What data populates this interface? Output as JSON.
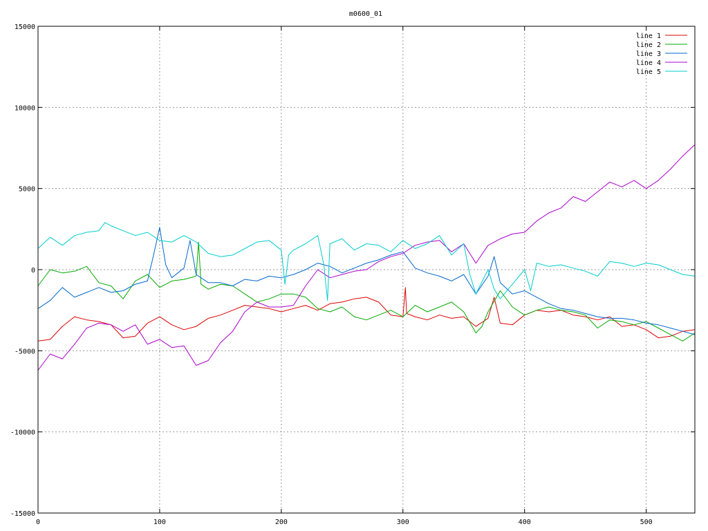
{
  "chart_data": {
    "type": "line",
    "title": "m0600_01",
    "xlabel": "",
    "ylabel": "",
    "xlim": [
      0,
      540
    ],
    "ylim": [
      -15000,
      15000
    ],
    "x_ticks": [
      0,
      100,
      200,
      300,
      400,
      500
    ],
    "y_ticks": [
      -15000,
      -10000,
      -5000,
      0,
      5000,
      10000,
      15000
    ],
    "grid": true,
    "legend_position": "top-right",
    "series": [
      {
        "name": "line 1",
        "color": "#dd0000",
        "x": [
          0,
          10,
          20,
          30,
          40,
          50,
          60,
          70,
          80,
          90,
          100,
          110,
          120,
          130,
          140,
          150,
          160,
          170,
          180,
          190,
          200,
          210,
          220,
          230,
          240,
          250,
          260,
          270,
          280,
          290,
          300,
          302,
          303,
          310,
          320,
          330,
          340,
          350,
          360,
          370,
          375,
          380,
          390,
          400,
          410,
          420,
          430,
          440,
          450,
          460,
          470,
          480,
          490,
          500,
          510,
          520,
          530,
          540
        ],
        "y": [
          -4400,
          -4300,
          -3500,
          -2900,
          -3100,
          -3200,
          -3400,
          -4200,
          -4100,
          -3300,
          -2900,
          -3400,
          -3700,
          -3500,
          -3000,
          -2800,
          -2500,
          -2200,
          -2300,
          -2400,
          -2600,
          -2400,
          -2200,
          -2500,
          -2100,
          -2000,
          -1800,
          -1700,
          -2000,
          -2800,
          -2900,
          -1100,
          -2700,
          -2900,
          -3100,
          -2800,
          -3000,
          -2900,
          -3500,
          -3000,
          -1700,
          -3300,
          -3400,
          -2800,
          -2500,
          -2600,
          -2500,
          -2800,
          -2900,
          -3100,
          -2900,
          -3500,
          -3400,
          -3700,
          -4200,
          -4100,
          -3800,
          -3700
        ]
      },
      {
        "name": "line 2",
        "color": "#00aa00",
        "x": [
          0,
          10,
          20,
          30,
          40,
          50,
          60,
          70,
          80,
          90,
          100,
          110,
          120,
          130,
          132,
          134,
          140,
          150,
          160,
          170,
          180,
          190,
          200,
          210,
          220,
          230,
          240,
          250,
          260,
          270,
          280,
          290,
          300,
          310,
          320,
          330,
          340,
          350,
          360,
          365,
          370,
          380,
          390,
          400,
          410,
          420,
          430,
          440,
          450,
          460,
          470,
          480,
          490,
          500,
          510,
          520,
          530,
          540
        ],
        "y": [
          -1000,
          0,
          -200,
          -100,
          200,
          -800,
          -1000,
          -1800,
          -700,
          -300,
          -1100,
          -700,
          -600,
          -400,
          1700,
          -900,
          -1200,
          -900,
          -1000,
          -1500,
          -2000,
          -1800,
          -1500,
          -1500,
          -1700,
          -2400,
          -2600,
          -2300,
          -2900,
          -3100,
          -2800,
          -2500,
          -2900,
          -2200,
          -2600,
          -2300,
          -2000,
          -2600,
          -3900,
          -3500,
          -2600,
          -1300,
          -2300,
          -2800,
          -2500,
          -2300,
          -2500,
          -2600,
          -2800,
          -3600,
          -3100,
          -3200,
          -3400,
          -3200,
          -3600,
          -4000,
          -4400,
          -3900
        ]
      },
      {
        "name": "line 3",
        "color": "#0066cc",
        "x": [
          0,
          10,
          20,
          30,
          40,
          50,
          60,
          70,
          80,
          90,
          95,
          100,
          105,
          110,
          120,
          125,
          130,
          140,
          150,
          160,
          170,
          180,
          190,
          200,
          210,
          220,
          230,
          240,
          250,
          260,
          270,
          280,
          290,
          300,
          310,
          320,
          330,
          340,
          350,
          360,
          370,
          375,
          380,
          390,
          400,
          410,
          420,
          430,
          440,
          450,
          460,
          470,
          480,
          490,
          500,
          510,
          520,
          530,
          540
        ],
        "y": [
          -2400,
          -1900,
          -1100,
          -1700,
          -1400,
          -1100,
          -1400,
          -1300,
          -900,
          -700,
          900,
          2600,
          300,
          -500,
          100,
          1800,
          -300,
          -800,
          -800,
          -1000,
          -600,
          -700,
          -400,
          -500,
          -300,
          0,
          400,
          200,
          -200,
          100,
          400,
          600,
          900,
          1100,
          100,
          -200,
          -400,
          -700,
          -300,
          -1500,
          -400,
          800,
          -800,
          -1500,
          -1300,
          -1700,
          -2100,
          -2400,
          -2500,
          -2700,
          -2900,
          -3000,
          -3000,
          -3100,
          -3300,
          -3400,
          -3600,
          -3800,
          -4000
        ]
      },
      {
        "name": "line 4",
        "color": "#aa00cc",
        "x": [
          0,
          10,
          20,
          30,
          40,
          50,
          60,
          70,
          80,
          90,
          100,
          110,
          120,
          130,
          140,
          150,
          160,
          170,
          180,
          190,
          200,
          210,
          220,
          230,
          240,
          250,
          260,
          270,
          280,
          290,
          300,
          310,
          320,
          330,
          340,
          350,
          360,
          370,
          380,
          390,
          400,
          410,
          420,
          430,
          440,
          450,
          460,
          470,
          480,
          490,
          500,
          510,
          520,
          530,
          540
        ],
        "y": [
          -6200,
          -5200,
          -5500,
          -4600,
          -3600,
          -3300,
          -3400,
          -3800,
          -3400,
          -4600,
          -4300,
          -4800,
          -4700,
          -5900,
          -5600,
          -4500,
          -3800,
          -2600,
          -2000,
          -2300,
          -2300,
          -2200,
          -1000,
          0,
          -500,
          -300,
          -100,
          0,
          500,
          800,
          1000,
          1500,
          1700,
          1800,
          1100,
          1600,
          400,
          1500,
          1900,
          2200,
          2300,
          3000,
          3500,
          3800,
          4500,
          4200,
          4800,
          5400,
          5100,
          5500,
          5000,
          5500,
          6200,
          7000,
          7700
        ]
      },
      {
        "name": "line 5",
        "color": "#00cccc",
        "x": [
          0,
          10,
          20,
          30,
          40,
          50,
          55,
          60,
          70,
          80,
          90,
          100,
          110,
          120,
          130,
          140,
          150,
          160,
          170,
          180,
          190,
          200,
          203,
          206,
          210,
          220,
          230,
          235,
          238,
          240,
          250,
          260,
          270,
          280,
          290,
          300,
          310,
          320,
          330,
          340,
          350,
          355,
          360,
          370,
          375,
          380,
          390,
          400,
          405,
          410,
          420,
          430,
          440,
          450,
          460,
          470,
          480,
          490,
          500,
          510,
          520,
          530,
          540
        ],
        "y": [
          1300,
          2000,
          1500,
          2100,
          2300,
          2400,
          2900,
          2700,
          2400,
          2100,
          2300,
          1800,
          1700,
          2100,
          1700,
          1000,
          800,
          900,
          1300,
          1700,
          1800,
          1200,
          -900,
          900,
          1200,
          1600,
          2100,
          300,
          -1900,
          1600,
          1900,
          1200,
          1600,
          1500,
          1100,
          1800,
          1300,
          1600,
          2100,
          900,
          1600,
          -300,
          -1500,
          0,
          -1200,
          -1800,
          -900,
          0,
          -1300,
          400,
          200,
          300,
          100,
          -100,
          -400,
          500,
          400,
          200,
          400,
          300,
          0,
          -300,
          -400
        ]
      }
    ]
  }
}
